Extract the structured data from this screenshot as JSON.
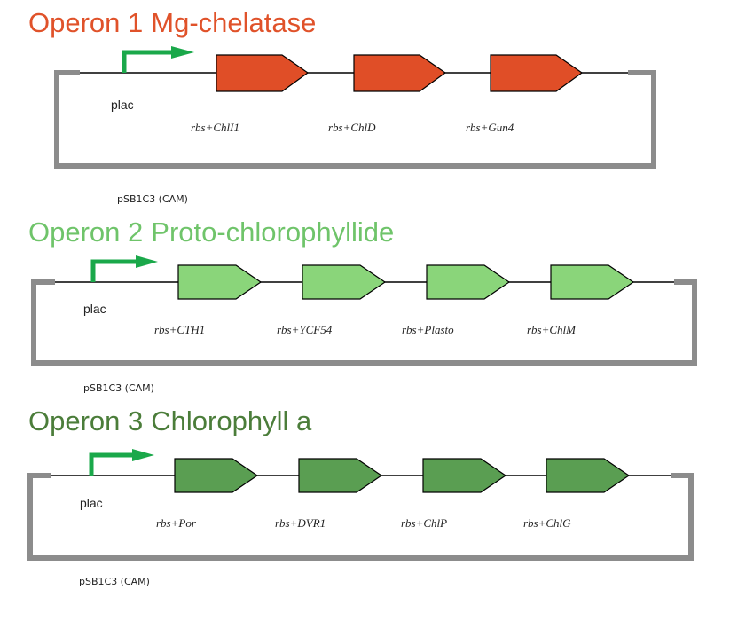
{
  "colors": {
    "backbone": "#8c8c8c",
    "line": "#000000",
    "promoter_arrow": "#1aa84a"
  },
  "operons": [
    {
      "number_label": "Operon 1",
      "product_label": "Mg-chelatase",
      "title_color": "#e0522a",
      "gene_fill": "#e04e27",
      "promoter_label": "plac",
      "vector_label": "pSB1C3 (CAM)",
      "genes": [
        {
          "label": "rbs+ChlI1"
        },
        {
          "label": "rbs+ChlD"
        },
        {
          "label": "rbs+Gun4"
        }
      ]
    },
    {
      "number_label": "Operon 2",
      "product_label": "Proto-chlorophyllide",
      "title_color": "#6fc46a",
      "gene_fill": "#8ad57a",
      "promoter_label": "plac",
      "vector_label": "pSB1C3 (CAM)",
      "genes": [
        {
          "label": "rbs+CTH1"
        },
        {
          "label": "rbs+YCF54"
        },
        {
          "label": "rbs+Plasto"
        },
        {
          "label": "rbs+ChlM"
        }
      ]
    },
    {
      "number_label": "Operon 3",
      "product_label": "Chlorophyll a",
      "title_color": "#4b7d3a",
      "gene_fill": "#5a9e52",
      "promoter_label": "plac",
      "vector_label": "pSB1C3 (CAM)",
      "genes": [
        {
          "label": "rbs+Por"
        },
        {
          "label": "rbs+DVR1"
        },
        {
          "label": "rbs+ChlP"
        },
        {
          "label": "rbs+ChlG"
        }
      ]
    }
  ]
}
